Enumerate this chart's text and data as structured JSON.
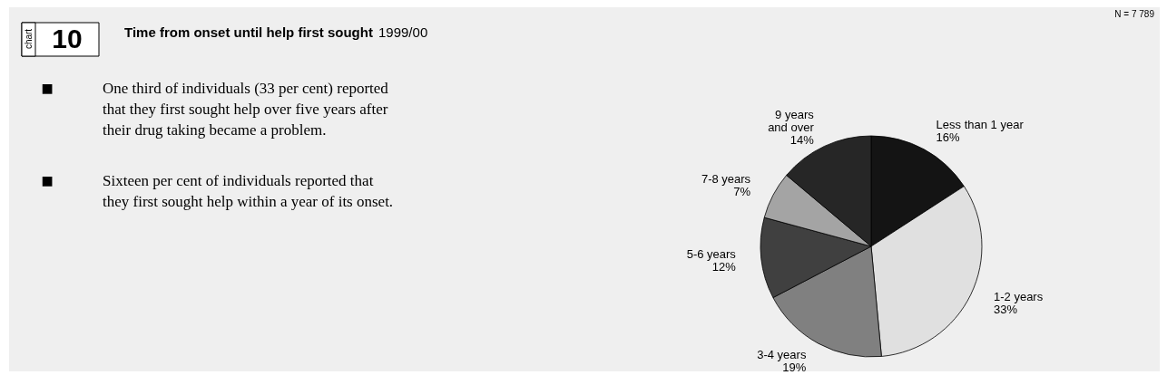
{
  "chart_data": {
    "type": "pie",
    "title": "Time from onset until help first sought",
    "subtitle": "1999/00",
    "categories": [
      "Less than 1 year",
      "1-2 years",
      "3-4 years",
      "5-6 years",
      "7-8 years",
      "9 years\nand over"
    ],
    "values": [
      16,
      33,
      19,
      12,
      7,
      14
    ],
    "value_labels": [
      "16%",
      "33%",
      "19%",
      "12%",
      "7%",
      "14%"
    ],
    "colors": [
      "#141414",
      "#e0e0e0",
      "#808080",
      "#404040",
      "#a4a4a4",
      "#262626"
    ],
    "annotations": [
      "chart",
      "10",
      "■",
      "One third of individuals (33 per cent) reported\nthat they first sought help over five years after\ntheir drug taking became a problem.",
      "■",
      "Sixteen per cent of individuals reported that\nthey first sought help within a year of its onset.",
      "N = 7 789"
    ]
  }
}
